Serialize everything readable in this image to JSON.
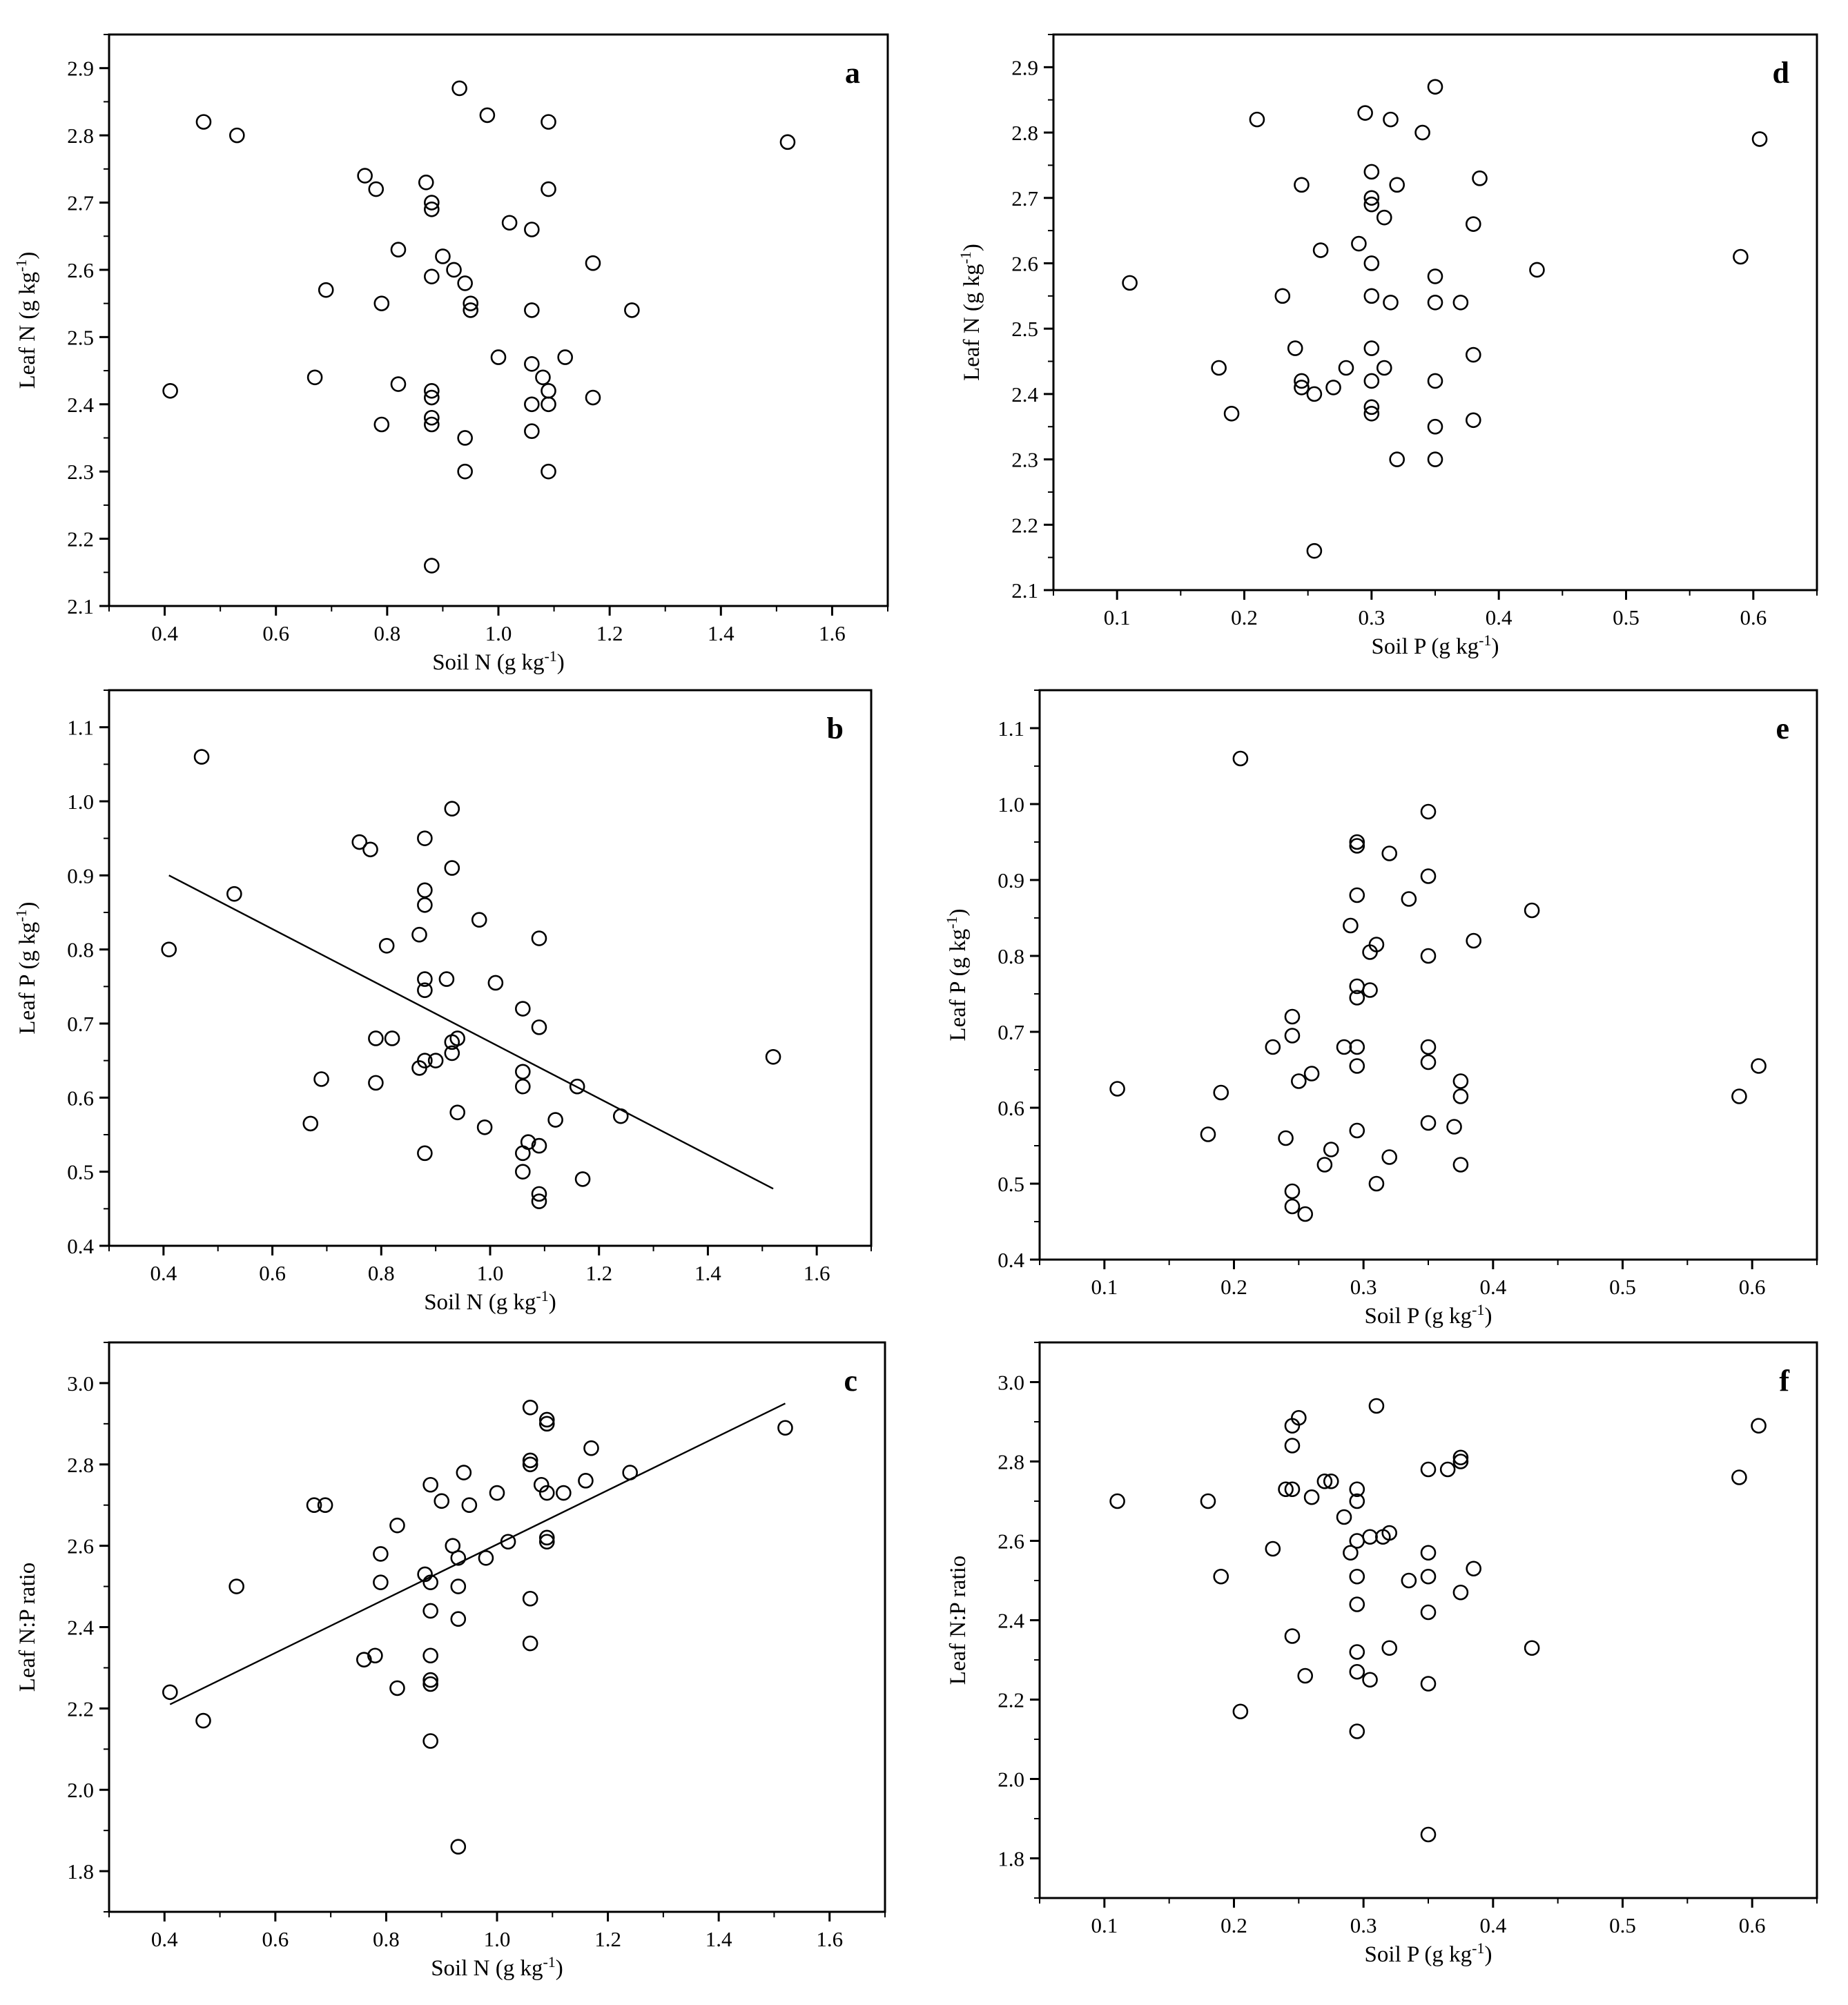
{
  "chart_data": [
    {
      "id": "a",
      "type": "scatter",
      "panel_label": "a",
      "xlabel": "Soil N (g kg-1)",
      "ylabel": "Leaf N (g kg-1)",
      "xlim": [
        0.3,
        1.7
      ],
      "ylim": [
        2.1,
        2.95
      ],
      "xticks": [
        0.4,
        0.6,
        0.8,
        1.0,
        1.2,
        1.4,
        1.6
      ],
      "yticks": [
        2.1,
        2.2,
        2.3,
        2.4,
        2.5,
        2.6,
        2.7,
        2.8,
        2.9
      ],
      "tick_decimals_x": 1,
      "tick_decimals_y": 1,
      "points": [
        [
          0.41,
          2.42
        ],
        [
          0.47,
          2.82
        ],
        [
          0.53,
          2.8
        ],
        [
          0.67,
          2.44
        ],
        [
          0.69,
          2.57
        ],
        [
          0.76,
          2.74
        ],
        [
          0.78,
          2.72
        ],
        [
          0.79,
          2.55
        ],
        [
          0.79,
          2.37
        ],
        [
          0.82,
          2.43
        ],
        [
          0.82,
          2.63
        ],
        [
          0.87,
          2.73
        ],
        [
          0.88,
          2.7
        ],
        [
          0.88,
          2.69
        ],
        [
          0.88,
          2.59
        ],
        [
          0.88,
          2.42
        ],
        [
          0.88,
          2.41
        ],
        [
          0.88,
          2.38
        ],
        [
          0.88,
          2.37
        ],
        [
          0.88,
          2.16
        ],
        [
          0.9,
          2.62
        ],
        [
          0.92,
          2.6
        ],
        [
          0.93,
          2.87
        ],
        [
          0.94,
          2.58
        ],
        [
          0.95,
          2.54
        ],
        [
          0.95,
          2.55
        ],
        [
          0.94,
          2.35
        ],
        [
          0.94,
          2.3
        ],
        [
          0.98,
          2.83
        ],
        [
          1.0,
          2.47
        ],
        [
          1.02,
          2.67
        ],
        [
          1.06,
          2.66
        ],
        [
          1.06,
          2.54
        ],
        [
          1.06,
          2.46
        ],
        [
          1.06,
          2.4
        ],
        [
          1.06,
          2.36
        ],
        [
          1.08,
          2.44
        ],
        [
          1.09,
          2.82
        ],
        [
          1.09,
          2.72
        ],
        [
          1.09,
          2.42
        ],
        [
          1.09,
          2.4
        ],
        [
          1.09,
          2.3
        ],
        [
          1.12,
          2.47
        ],
        [
          1.17,
          2.61
        ],
        [
          1.17,
          2.41
        ],
        [
          1.24,
          2.54
        ],
        [
          1.52,
          2.79
        ]
      ]
    },
    {
      "id": "b",
      "type": "scatter",
      "panel_label": "b",
      "xlabel": "Soil N (g kg-1)",
      "ylabel": "Leaf P (g kg-1)",
      "xlim": [
        0.3,
        1.7
      ],
      "ylim": [
        0.4,
        1.15
      ],
      "xticks": [
        0.4,
        0.6,
        0.8,
        1.0,
        1.2,
        1.4,
        1.6
      ],
      "yticks": [
        0.4,
        0.5,
        0.6,
        0.7,
        0.8,
        0.9,
        1.0,
        1.1
      ],
      "tick_decimals_x": 1,
      "tick_decimals_y": 1,
      "fit_line": [
        [
          0.41,
          0.9
        ],
        [
          1.52,
          0.477
        ]
      ],
      "points": [
        [
          0.41,
          0.8
        ],
        [
          0.47,
          1.06
        ],
        [
          0.53,
          0.875
        ],
        [
          0.67,
          0.565
        ],
        [
          0.69,
          0.625
        ],
        [
          0.76,
          0.945
        ],
        [
          0.78,
          0.935
        ],
        [
          0.79,
          0.68
        ],
        [
          0.79,
          0.62
        ],
        [
          0.81,
          0.805
        ],
        [
          0.82,
          0.68
        ],
        [
          0.87,
          0.82
        ],
        [
          0.87,
          0.64
        ],
        [
          0.88,
          0.95
        ],
        [
          0.88,
          0.88
        ],
        [
          0.88,
          0.86
        ],
        [
          0.88,
          0.76
        ],
        [
          0.88,
          0.745
        ],
        [
          0.88,
          0.65
        ],
        [
          0.88,
          0.525
        ],
        [
          0.9,
          0.65
        ],
        [
          0.92,
          0.76
        ],
        [
          0.93,
          0.99
        ],
        [
          0.93,
          0.91
        ],
        [
          0.93,
          0.675
        ],
        [
          0.93,
          0.66
        ],
        [
          0.94,
          0.58
        ],
        [
          0.94,
          0.68
        ],
        [
          0.98,
          0.84
        ],
        [
          0.99,
          0.56
        ],
        [
          1.01,
          0.755
        ],
        [
          1.06,
          0.72
        ],
        [
          1.06,
          0.635
        ],
        [
          1.06,
          0.615
        ],
        [
          1.06,
          0.525
        ],
        [
          1.06,
          0.5
        ],
        [
          1.07,
          0.54
        ],
        [
          1.09,
          0.815
        ],
        [
          1.09,
          0.695
        ],
        [
          1.09,
          0.535
        ],
        [
          1.09,
          0.47
        ],
        [
          1.09,
          0.46
        ],
        [
          1.12,
          0.57
        ],
        [
          1.16,
          0.615
        ],
        [
          1.17,
          0.49
        ],
        [
          1.24,
          0.575
        ],
        [
          1.52,
          0.655
        ]
      ]
    },
    {
      "id": "c",
      "type": "scatter",
      "panel_label": "c",
      "xlabel": "Soil N (g kg-1)",
      "ylabel": "Leaf N:P ratio",
      "xlim": [
        0.3,
        1.7
      ],
      "ylim": [
        1.7,
        3.1
      ],
      "xticks": [
        0.4,
        0.6,
        0.8,
        1.0,
        1.2,
        1.4,
        1.6
      ],
      "yticks": [
        1.8,
        2.0,
        2.2,
        2.4,
        2.6,
        2.8,
        3.0
      ],
      "tick_decimals_x": 1,
      "tick_decimals_y": 1,
      "fit_line": [
        [
          0.41,
          2.21
        ],
        [
          1.52,
          2.95
        ]
      ],
      "points": [
        [
          0.41,
          2.24
        ],
        [
          0.47,
          2.17
        ],
        [
          0.53,
          2.5
        ],
        [
          0.67,
          2.7
        ],
        [
          0.69,
          2.7
        ],
        [
          0.76,
          2.32
        ],
        [
          0.78,
          2.33
        ],
        [
          0.79,
          2.58
        ],
        [
          0.79,
          2.51
        ],
        [
          0.82,
          2.25
        ],
        [
          0.82,
          2.65
        ],
        [
          0.87,
          2.53
        ],
        [
          0.88,
          2.75
        ],
        [
          0.88,
          2.51
        ],
        [
          0.88,
          2.44
        ],
        [
          0.88,
          2.33
        ],
        [
          0.88,
          2.27
        ],
        [
          0.88,
          2.26
        ],
        [
          0.88,
          2.12
        ],
        [
          0.9,
          2.71
        ],
        [
          0.92,
          2.6
        ],
        [
          0.93,
          2.57
        ],
        [
          0.93,
          2.5
        ],
        [
          0.93,
          2.42
        ],
        [
          0.93,
          1.86
        ],
        [
          0.94,
          2.78
        ],
        [
          0.95,
          2.7
        ],
        [
          0.98,
          2.57
        ],
        [
          1.0,
          2.73
        ],
        [
          1.02,
          2.61
        ],
        [
          1.06,
          2.94
        ],
        [
          1.06,
          2.81
        ],
        [
          1.06,
          2.8
        ],
        [
          1.06,
          2.47
        ],
        [
          1.06,
          2.36
        ],
        [
          1.08,
          2.75
        ],
        [
          1.09,
          2.91
        ],
        [
          1.09,
          2.9
        ],
        [
          1.09,
          2.73
        ],
        [
          1.09,
          2.62
        ],
        [
          1.09,
          2.61
        ],
        [
          1.12,
          2.73
        ],
        [
          1.16,
          2.76
        ],
        [
          1.17,
          2.84
        ],
        [
          1.24,
          2.78
        ],
        [
          1.52,
          2.89
        ]
      ]
    },
    {
      "id": "d",
      "type": "scatter",
      "panel_label": "d",
      "xlabel": "Soil P (g kg-1)",
      "ylabel": "Leaf N (g kg-1)",
      "xlim": [
        0.05,
        0.65
      ],
      "ylim": [
        2.1,
        2.95
      ],
      "xticks": [
        0.1,
        0.2,
        0.3,
        0.4,
        0.5,
        0.6
      ],
      "yticks": [
        2.1,
        2.2,
        2.3,
        2.4,
        2.5,
        2.6,
        2.7,
        2.8,
        2.9
      ],
      "tick_decimals_x": 1,
      "tick_decimals_y": 1,
      "points": [
        [
          0.11,
          2.57
        ],
        [
          0.18,
          2.44
        ],
        [
          0.19,
          2.37
        ],
        [
          0.21,
          2.82
        ],
        [
          0.23,
          2.55
        ],
        [
          0.24,
          2.47
        ],
        [
          0.245,
          2.72
        ],
        [
          0.245,
          2.42
        ],
        [
          0.245,
          2.41
        ],
        [
          0.255,
          2.4
        ],
        [
          0.255,
          2.16
        ],
        [
          0.26,
          2.62
        ],
        [
          0.27,
          2.41
        ],
        [
          0.28,
          2.44
        ],
        [
          0.29,
          2.63
        ],
        [
          0.295,
          2.83
        ],
        [
          0.3,
          2.74
        ],
        [
          0.3,
          2.7
        ],
        [
          0.3,
          2.69
        ],
        [
          0.3,
          2.6
        ],
        [
          0.3,
          2.55
        ],
        [
          0.3,
          2.47
        ],
        [
          0.3,
          2.42
        ],
        [
          0.3,
          2.38
        ],
        [
          0.3,
          2.37
        ],
        [
          0.31,
          2.67
        ],
        [
          0.31,
          2.44
        ],
        [
          0.315,
          2.82
        ],
        [
          0.315,
          2.54
        ],
        [
          0.32,
          2.72
        ],
        [
          0.32,
          2.3
        ],
        [
          0.34,
          2.8
        ],
        [
          0.35,
          2.87
        ],
        [
          0.35,
          2.58
        ],
        [
          0.35,
          2.54
        ],
        [
          0.35,
          2.42
        ],
        [
          0.35,
          2.35
        ],
        [
          0.35,
          2.3
        ],
        [
          0.37,
          2.54
        ],
        [
          0.38,
          2.66
        ],
        [
          0.38,
          2.46
        ],
        [
          0.38,
          2.36
        ],
        [
          0.385,
          2.73
        ],
        [
          0.43,
          2.59
        ],
        [
          0.59,
          2.61
        ],
        [
          0.605,
          2.79
        ]
      ]
    },
    {
      "id": "e",
      "type": "scatter",
      "panel_label": "e",
      "xlabel": "Soil P (g kg-1)",
      "ylabel": "Leaf P (g kg-1)",
      "xlim": [
        0.05,
        0.65
      ],
      "ylim": [
        0.4,
        1.15
      ],
      "xticks": [
        0.1,
        0.2,
        0.3,
        0.4,
        0.5,
        0.6
      ],
      "yticks": [
        0.4,
        0.5,
        0.6,
        0.7,
        0.8,
        0.9,
        1.0,
        1.1
      ],
      "tick_decimals_x": 1,
      "tick_decimals_y": 1,
      "points": [
        [
          0.11,
          0.625
        ],
        [
          0.18,
          0.565
        ],
        [
          0.19,
          0.62
        ],
        [
          0.205,
          1.06
        ],
        [
          0.23,
          0.68
        ],
        [
          0.24,
          0.56
        ],
        [
          0.245,
          0.72
        ],
        [
          0.245,
          0.695
        ],
        [
          0.245,
          0.49
        ],
        [
          0.245,
          0.47
        ],
        [
          0.25,
          0.635
        ],
        [
          0.255,
          0.46
        ],
        [
          0.26,
          0.645
        ],
        [
          0.27,
          0.525
        ],
        [
          0.275,
          0.545
        ],
        [
          0.285,
          0.68
        ],
        [
          0.29,
          0.84
        ],
        [
          0.295,
          0.95
        ],
        [
          0.295,
          0.945
        ],
        [
          0.295,
          0.88
        ],
        [
          0.295,
          0.76
        ],
        [
          0.295,
          0.745
        ],
        [
          0.295,
          0.68
        ],
        [
          0.295,
          0.655
        ],
        [
          0.295,
          0.57
        ],
        [
          0.305,
          0.805
        ],
        [
          0.305,
          0.755
        ],
        [
          0.31,
          0.815
        ],
        [
          0.31,
          0.5
        ],
        [
          0.32,
          0.935
        ],
        [
          0.32,
          0.535
        ],
        [
          0.335,
          0.875
        ],
        [
          0.35,
          0.99
        ],
        [
          0.35,
          0.905
        ],
        [
          0.35,
          0.8
        ],
        [
          0.35,
          0.68
        ],
        [
          0.35,
          0.66
        ],
        [
          0.35,
          0.58
        ],
        [
          0.37,
          0.575
        ],
        [
          0.375,
          0.635
        ],
        [
          0.375,
          0.615
        ],
        [
          0.375,
          0.525
        ],
        [
          0.385,
          0.82
        ],
        [
          0.43,
          0.86
        ],
        [
          0.59,
          0.615
        ],
        [
          0.605,
          0.655
        ]
      ]
    },
    {
      "id": "f",
      "type": "scatter",
      "panel_label": "f",
      "xlabel": "Soil P (g kg-1)",
      "ylabel": "Leaf N:P ratio",
      "xlim": [
        0.05,
        0.65
      ],
      "ylim": [
        1.7,
        3.1
      ],
      "xticks": [
        0.1,
        0.2,
        0.3,
        0.4,
        0.5,
        0.6
      ],
      "yticks": [
        1.8,
        2.0,
        2.2,
        2.4,
        2.6,
        2.8,
        3.0
      ],
      "tick_decimals_x": 1,
      "tick_decimals_y": 1,
      "points": [
        [
          0.11,
          2.7
        ],
        [
          0.18,
          2.7
        ],
        [
          0.19,
          2.51
        ],
        [
          0.205,
          2.17
        ],
        [
          0.23,
          2.58
        ],
        [
          0.24,
          2.73
        ],
        [
          0.245,
          2.89
        ],
        [
          0.245,
          2.84
        ],
        [
          0.245,
          2.73
        ],
        [
          0.245,
          2.36
        ],
        [
          0.25,
          2.91
        ],
        [
          0.255,
          2.26
        ],
        [
          0.26,
          2.71
        ],
        [
          0.27,
          2.75
        ],
        [
          0.275,
          2.75
        ],
        [
          0.285,
          2.66
        ],
        [
          0.29,
          2.57
        ],
        [
          0.295,
          2.73
        ],
        [
          0.295,
          2.7
        ],
        [
          0.295,
          2.6
        ],
        [
          0.295,
          2.51
        ],
        [
          0.295,
          2.44
        ],
        [
          0.295,
          2.32
        ],
        [
          0.295,
          2.27
        ],
        [
          0.295,
          2.12
        ],
        [
          0.305,
          2.61
        ],
        [
          0.305,
          2.25
        ],
        [
          0.31,
          2.94
        ],
        [
          0.315,
          2.61
        ],
        [
          0.32,
          2.62
        ],
        [
          0.32,
          2.33
        ],
        [
          0.335,
          2.5
        ],
        [
          0.35,
          2.78
        ],
        [
          0.35,
          2.57
        ],
        [
          0.35,
          2.51
        ],
        [
          0.35,
          2.42
        ],
        [
          0.35,
          2.24
        ],
        [
          0.35,
          1.86
        ],
        [
          0.365,
          2.78
        ],
        [
          0.375,
          2.81
        ],
        [
          0.375,
          2.8
        ],
        [
          0.375,
          2.47
        ],
        [
          0.385,
          2.53
        ],
        [
          0.43,
          2.33
        ],
        [
          0.59,
          2.76
        ],
        [
          0.605,
          2.89
        ]
      ]
    }
  ]
}
